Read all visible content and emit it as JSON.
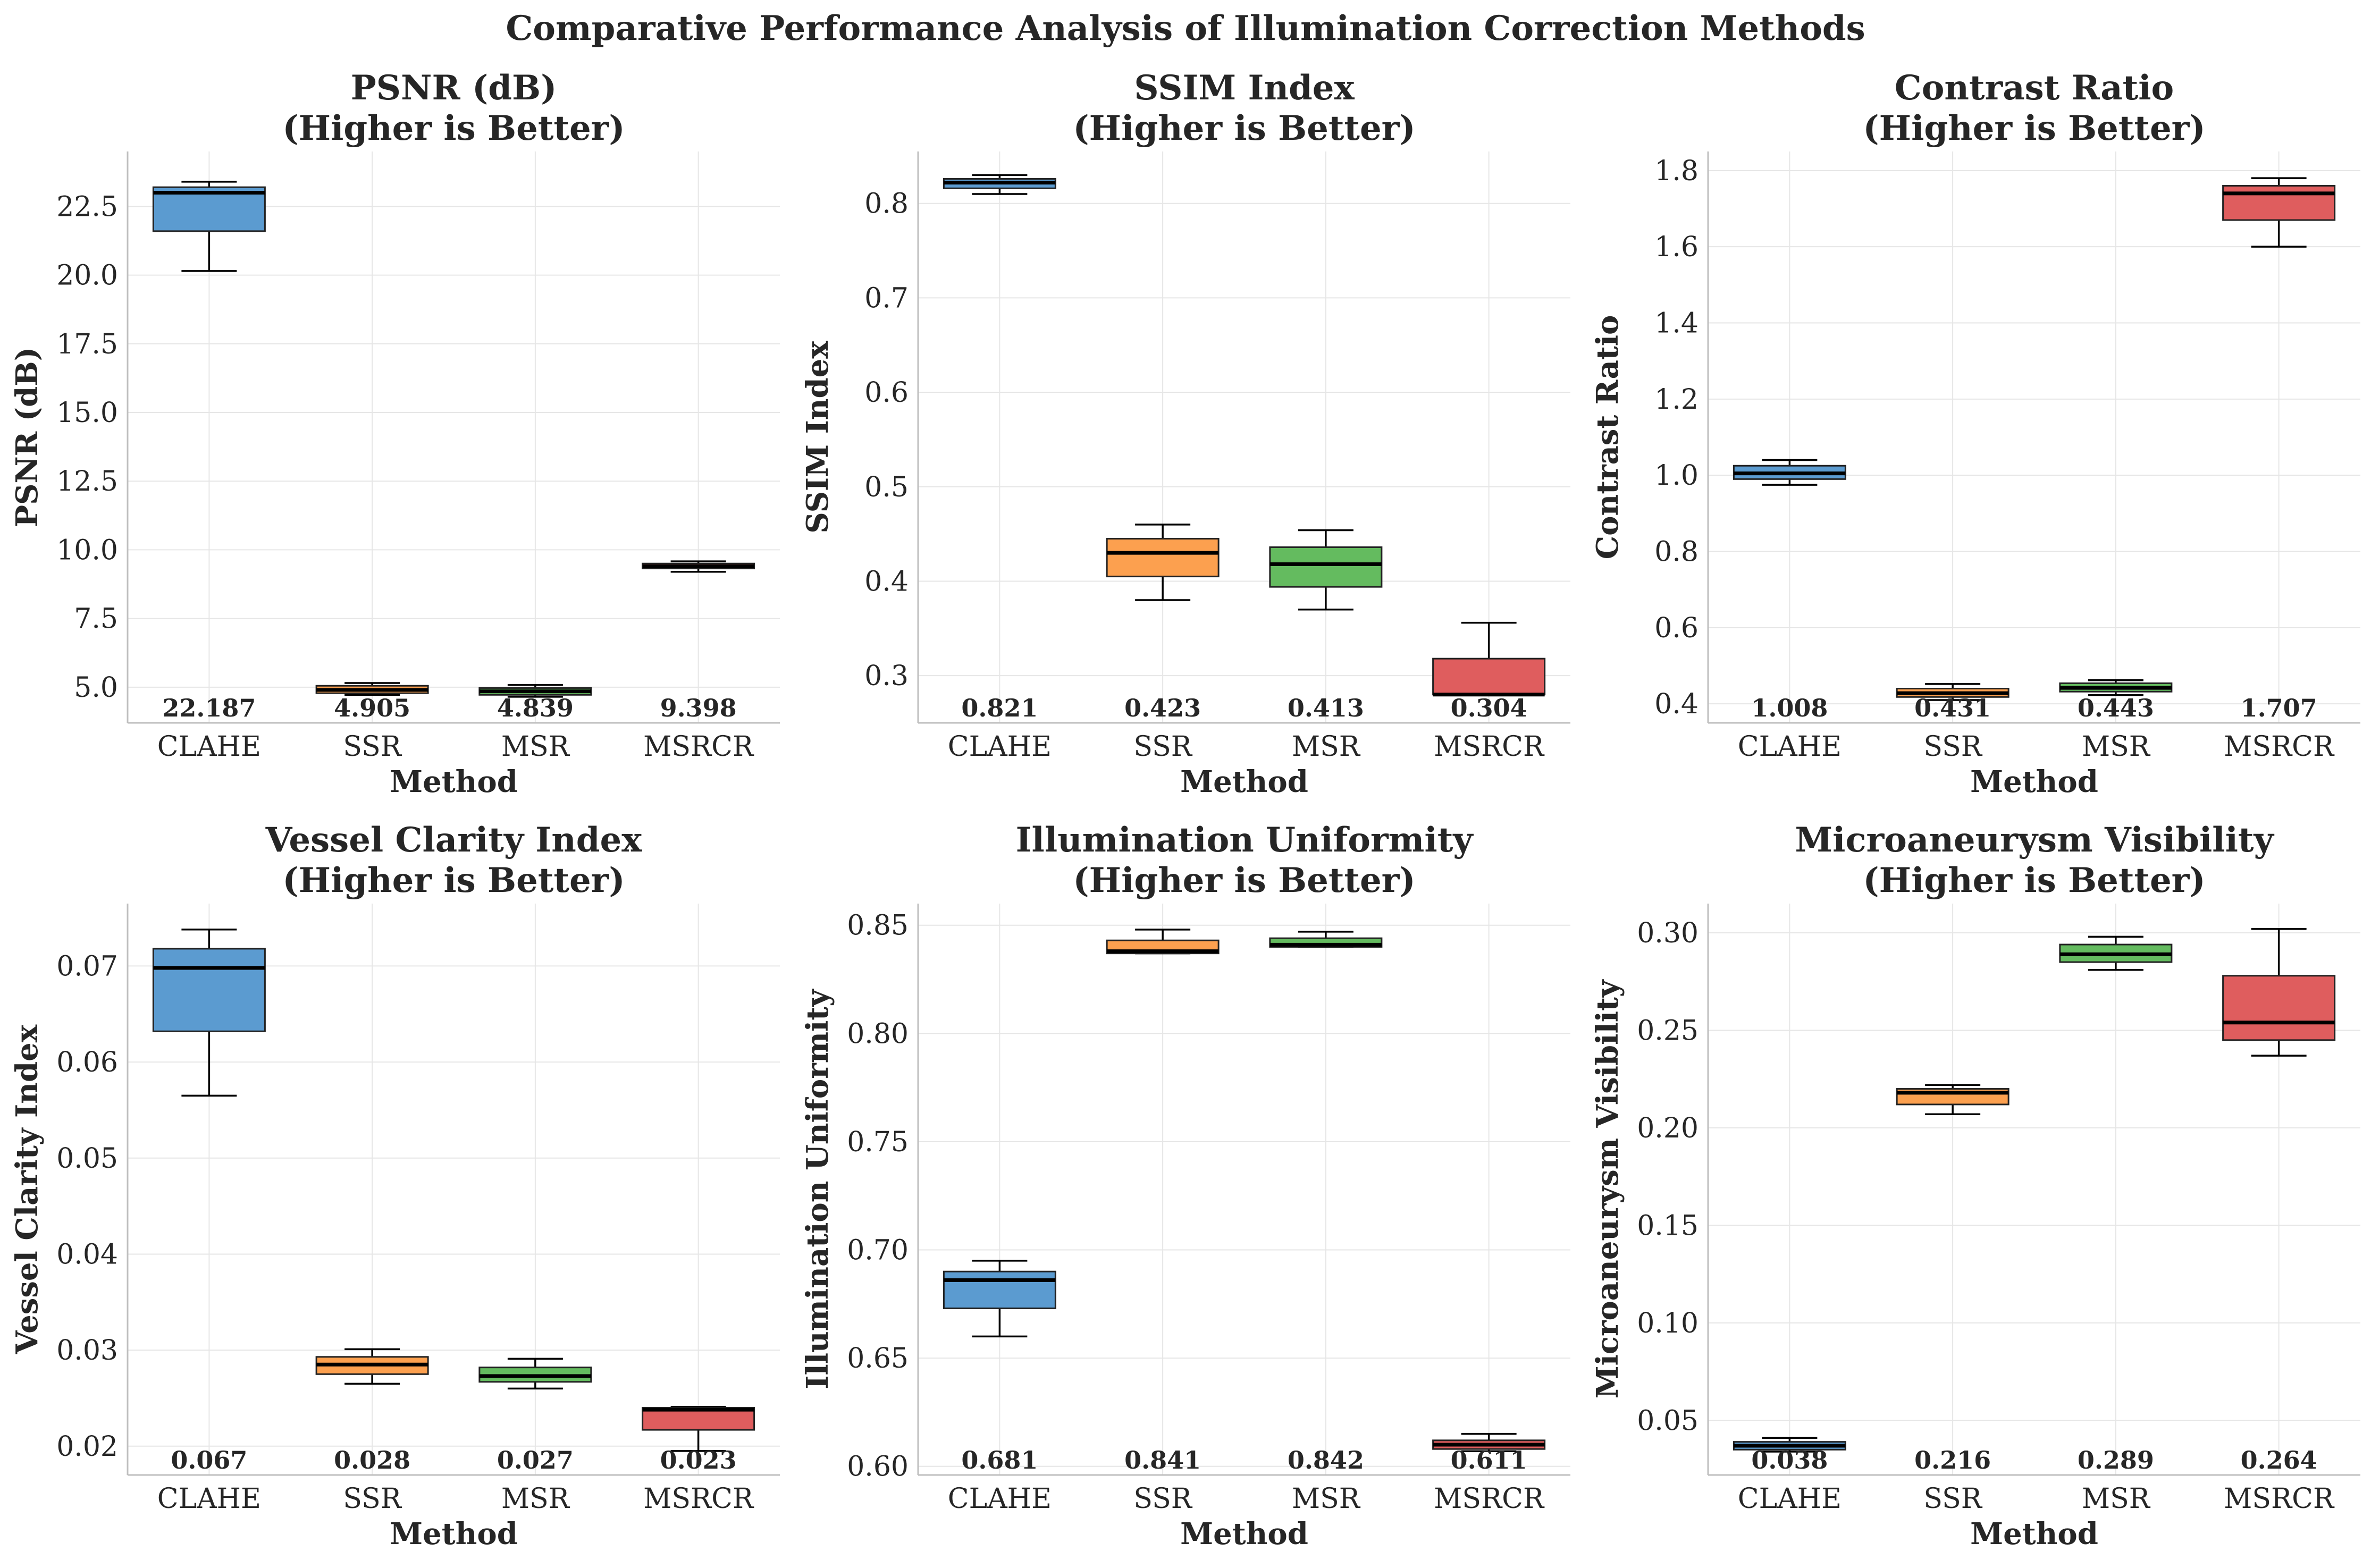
{
  "figure": {
    "title": "Comparative Performance Analysis of Illumination Correction Methods"
  },
  "colors": {
    "CLAHE": "#5b9bd0",
    "SSR": "#fca04f",
    "MSR": "#64bb5f",
    "MSRCR": "#df5d5e",
    "grid": "#e6e6e6",
    "axis": "#bfbfbf",
    "median": "#000000"
  },
  "chart_data": [
    {
      "type": "box",
      "title_line1": "PSNR (dB)",
      "title_line2": "(Higher is Better)",
      "xlabel": "Method",
      "ylabel": "PSNR (dB)",
      "ylim": [
        3.7,
        24.5
      ],
      "yticks": [
        5.0,
        7.5,
        10.0,
        12.5,
        15.0,
        17.5,
        20.0,
        22.5
      ],
      "ytick_labels": [
        "5.0",
        "7.5",
        "10.0",
        "12.5",
        "15.0",
        "17.5",
        "20.0",
        "22.5"
      ],
      "categories": [
        "CLAHE",
        "SSR",
        "MSR",
        "MSRCR"
      ],
      "boxes": [
        {
          "method": "CLAHE",
          "whislo": 20.15,
          "q1": 21.6,
          "med": 23.0,
          "q3": 23.2,
          "whishi": 23.4
        },
        {
          "method": "SSR",
          "whislo": 4.72,
          "q1": 4.78,
          "med": 4.9,
          "q3": 5.05,
          "whishi": 5.15
        },
        {
          "method": "MSR",
          "whislo": 4.65,
          "q1": 4.72,
          "med": 4.85,
          "q3": 4.97,
          "whishi": 5.08
        },
        {
          "method": "MSRCR",
          "whislo": 9.2,
          "q1": 9.32,
          "med": 9.4,
          "q3": 9.5,
          "whishi": 9.58
        }
      ],
      "mean_labels": [
        "22.187",
        "4.905",
        "4.839",
        "9.398"
      ]
    },
    {
      "type": "box",
      "title_line1": "SSIM Index",
      "title_line2": "(Higher is Better)",
      "xlabel": "Method",
      "ylabel": "SSIM Index",
      "ylim": [
        0.25,
        0.855
      ],
      "yticks": [
        0.3,
        0.4,
        0.5,
        0.6,
        0.7,
        0.8
      ],
      "ytick_labels": [
        "0.3",
        "0.4",
        "0.5",
        "0.6",
        "0.7",
        "0.8"
      ],
      "categories": [
        "CLAHE",
        "SSR",
        "MSR",
        "MSRCR"
      ],
      "boxes": [
        {
          "method": "CLAHE",
          "whislo": 0.81,
          "q1": 0.816,
          "med": 0.822,
          "q3": 0.826,
          "whishi": 0.83
        },
        {
          "method": "SSR",
          "whislo": 0.38,
          "q1": 0.405,
          "med": 0.43,
          "q3": 0.445,
          "whishi": 0.46
        },
        {
          "method": "MSR",
          "whislo": 0.37,
          "q1": 0.394,
          "med": 0.418,
          "q3": 0.436,
          "whishi": 0.454
        },
        {
          "method": "MSRCR",
          "whislo": 0.28,
          "q1": 0.28,
          "med": 0.28,
          "q3": 0.318,
          "whishi": 0.356
        }
      ],
      "mean_labels": [
        "0.821",
        "0.423",
        "0.413",
        "0.304"
      ]
    },
    {
      "type": "box",
      "title_line1": "Contrast Ratio",
      "title_line2": "(Higher is Better)",
      "xlabel": "Method",
      "ylabel": "Contrast Ratio",
      "ylim": [
        0.35,
        1.85
      ],
      "yticks": [
        0.4,
        0.6,
        0.8,
        1.0,
        1.2,
        1.4,
        1.6,
        1.8
      ],
      "ytick_labels": [
        "0.4",
        "0.6",
        "0.8",
        "1.0",
        "1.2",
        "1.4",
        "1.6",
        "1.8"
      ],
      "categories": [
        "CLAHE",
        "SSR",
        "MSR",
        "MSRCR"
      ],
      "boxes": [
        {
          "method": "CLAHE",
          "whislo": 0.975,
          "q1": 0.99,
          "med": 1.005,
          "q3": 1.025,
          "whishi": 1.04
        },
        {
          "method": "SSR",
          "whislo": 0.41,
          "q1": 0.418,
          "med": 0.428,
          "q3": 0.44,
          "whishi": 0.452
        },
        {
          "method": "MSR",
          "whislo": 0.423,
          "q1": 0.432,
          "med": 0.442,
          "q3": 0.454,
          "whishi": 0.462
        },
        {
          "method": "MSRCR",
          "whislo": 1.6,
          "q1": 1.67,
          "med": 1.74,
          "q3": 1.76,
          "whishi": 1.78
        }
      ],
      "mean_labels": [
        "1.008",
        "0.431",
        "0.443",
        "1.707"
      ]
    },
    {
      "type": "box",
      "title_line1": "Vessel Clarity Index",
      "title_line2": "(Higher is Better)",
      "xlabel": "Method",
      "ylabel": "Vessel Clarity Index",
      "ylim": [
        0.017,
        0.0765
      ],
      "yticks": [
        0.02,
        0.03,
        0.04,
        0.05,
        0.06,
        0.07
      ],
      "ytick_labels": [
        "0.02",
        "0.03",
        "0.04",
        "0.05",
        "0.06",
        "0.07"
      ],
      "categories": [
        "CLAHE",
        "SSR",
        "MSR",
        "MSRCR"
      ],
      "boxes": [
        {
          "method": "CLAHE",
          "whislo": 0.0565,
          "q1": 0.0632,
          "med": 0.0698,
          "q3": 0.0718,
          "whishi": 0.0738
        },
        {
          "method": "SSR",
          "whislo": 0.0265,
          "q1": 0.0275,
          "med": 0.0285,
          "q3": 0.0293,
          "whishi": 0.0301
        },
        {
          "method": "MSR",
          "whislo": 0.026,
          "q1": 0.0267,
          "med": 0.0273,
          "q3": 0.0282,
          "whishi": 0.0291
        },
        {
          "method": "MSRCR",
          "whislo": 0.0195,
          "q1": 0.0217,
          "med": 0.0238,
          "q3": 0.024,
          "whishi": 0.0241
        }
      ],
      "mean_labels": [
        "0.067",
        "0.028",
        "0.027",
        "0.023"
      ]
    },
    {
      "type": "box",
      "title_line1": "Illumination Uniformity",
      "title_line2": "(Higher is Better)",
      "xlabel": "Method",
      "ylabel": "Illumination Uniformity",
      "ylim": [
        0.596,
        0.86
      ],
      "yticks": [
        0.6,
        0.65,
        0.7,
        0.75,
        0.8,
        0.85
      ],
      "ytick_labels": [
        "0.60",
        "0.65",
        "0.70",
        "0.75",
        "0.80",
        "0.85"
      ],
      "categories": [
        "CLAHE",
        "SSR",
        "MSR",
        "MSRCR"
      ],
      "boxes": [
        {
          "method": "CLAHE",
          "whislo": 0.66,
          "q1": 0.673,
          "med": 0.686,
          "q3": 0.69,
          "whishi": 0.695
        },
        {
          "method": "SSR",
          "whislo": 0.837,
          "q1": 0.837,
          "med": 0.838,
          "q3": 0.843,
          "whishi": 0.848
        },
        {
          "method": "MSR",
          "whislo": 0.84,
          "q1": 0.84,
          "med": 0.841,
          "q3": 0.844,
          "whishi": 0.847
        },
        {
          "method": "MSRCR",
          "whislo": 0.607,
          "q1": 0.608,
          "med": 0.61,
          "q3": 0.612,
          "whishi": 0.615
        }
      ],
      "mean_labels": [
        "0.681",
        "0.841",
        "0.842",
        "0.611"
      ]
    },
    {
      "type": "box",
      "title_line1": "Microaneurysm Visibility",
      "title_line2": "(Higher is Better)",
      "xlabel": "Method",
      "ylabel": "Microaneurysm Visibility",
      "ylim": [
        0.022,
        0.315
      ],
      "yticks": [
        0.05,
        0.1,
        0.15,
        0.2,
        0.25,
        0.3
      ],
      "ytick_labels": [
        "0.05",
        "0.10",
        "0.15",
        "0.20",
        "0.25",
        "0.30"
      ],
      "categories": [
        "CLAHE",
        "SSR",
        "MSR",
        "MSRCR"
      ],
      "boxes": [
        {
          "method": "CLAHE",
          "whislo": 0.034,
          "q1": 0.035,
          "med": 0.037,
          "q3": 0.039,
          "whishi": 0.041
        },
        {
          "method": "SSR",
          "whislo": 0.207,
          "q1": 0.212,
          "med": 0.218,
          "q3": 0.22,
          "whishi": 0.222
        },
        {
          "method": "MSR",
          "whislo": 0.281,
          "q1": 0.285,
          "med": 0.289,
          "q3": 0.294,
          "whishi": 0.298
        },
        {
          "method": "MSRCR",
          "whislo": 0.237,
          "q1": 0.245,
          "med": 0.254,
          "q3": 0.278,
          "whishi": 0.302
        }
      ],
      "mean_labels": [
        "0.038",
        "0.216",
        "0.289",
        "0.264"
      ]
    }
  ]
}
